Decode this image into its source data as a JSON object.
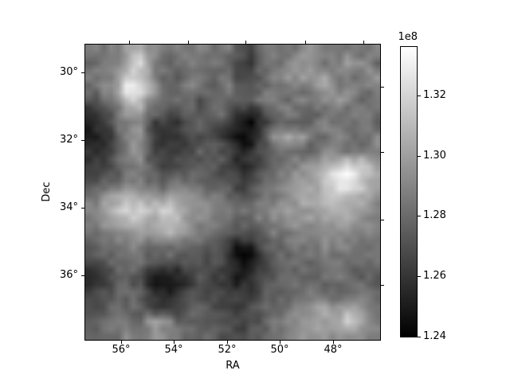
{
  "figure": {
    "background": "#ffffff",
    "text_color": "#000000"
  },
  "chart_data": {
    "type": "heatmap",
    "title": "",
    "xlabel": "RA",
    "ylabel": "Dec",
    "colormap": "gray",
    "x_axis": {
      "unit": "degrees",
      "range": [
        57.36,
        46.21
      ],
      "ticks": [
        56,
        54,
        52,
        50,
        48
      ],
      "tick_labels": [
        "56°",
        "54°",
        "52°",
        "50°",
        "48°"
      ],
      "direction": "decreasing-rightward"
    },
    "y_axis": {
      "unit": "degrees",
      "range": [
        29.18,
        37.9
      ],
      "ticks": [
        30,
        32,
        34,
        36
      ],
      "tick_labels": [
        "30°",
        "32°",
        "34°",
        "36°"
      ],
      "direction": "increasing-downward"
    },
    "colorbar": {
      "offset_label": "1e8",
      "vmin_1e8": 1.24,
      "vmax_1e8": 1.336,
      "ticks_1e8": [
        1.32,
        1.3,
        1.28,
        1.26,
        1.24
      ],
      "tick_labels": [
        "1.32",
        "1.30",
        "1.28",
        "1.26",
        "1.24"
      ],
      "top_color": "#ffffff",
      "bottom_color": "#000000"
    },
    "grid_rows": 24,
    "grid_cols": 24,
    "texture_noise_amplitude_1e8": 0.006,
    "values_1e8": [
      [
        1.29,
        1.28,
        1.29,
        1.3,
        1.31,
        1.29,
        1.28,
        1.29,
        1.28,
        1.29,
        1.28,
        1.29,
        1.27,
        1.27,
        1.28,
        1.29,
        1.28,
        1.29,
        1.3,
        1.29,
        1.28,
        1.29,
        1.28,
        1.29
      ],
      [
        1.28,
        1.29,
        1.28,
        1.31,
        1.32,
        1.29,
        1.28,
        1.28,
        1.29,
        1.28,
        1.29,
        1.28,
        1.27,
        1.26,
        1.28,
        1.28,
        1.29,
        1.3,
        1.29,
        1.28,
        1.29,
        1.3,
        1.29,
        1.28
      ],
      [
        1.29,
        1.28,
        1.29,
        1.32,
        1.31,
        1.29,
        1.28,
        1.27,
        1.28,
        1.29,
        1.28,
        1.28,
        1.27,
        1.27,
        1.28,
        1.29,
        1.295,
        1.3,
        1.3,
        1.3,
        1.29,
        1.28,
        1.29,
        1.3
      ],
      [
        1.28,
        1.29,
        1.3,
        1.335,
        1.33,
        1.3,
        1.28,
        1.28,
        1.29,
        1.28,
        1.28,
        1.29,
        1.27,
        1.27,
        1.28,
        1.28,
        1.29,
        1.28,
        1.29,
        1.3,
        1.29,
        1.29,
        1.28,
        1.29
      ],
      [
        1.27,
        1.28,
        1.29,
        1.32,
        1.31,
        1.29,
        1.28,
        1.28,
        1.28,
        1.27,
        1.28,
        1.28,
        1.28,
        1.27,
        1.29,
        1.29,
        1.28,
        1.29,
        1.28,
        1.29,
        1.3,
        1.29,
        1.28,
        1.28
      ],
      [
        1.26,
        1.27,
        1.28,
        1.3,
        1.3,
        1.28,
        1.27,
        1.27,
        1.28,
        1.27,
        1.28,
        1.28,
        1.26,
        1.25,
        1.27,
        1.28,
        1.29,
        1.28,
        1.28,
        1.28,
        1.29,
        1.28,
        1.29,
        1.28
      ],
      [
        1.255,
        1.26,
        1.28,
        1.29,
        1.29,
        1.26,
        1.26,
        1.26,
        1.27,
        1.28,
        1.27,
        1.27,
        1.245,
        1.245,
        1.26,
        1.28,
        1.28,
        1.28,
        1.28,
        1.29,
        1.28,
        1.28,
        1.29,
        1.28
      ],
      [
        1.25,
        1.255,
        1.27,
        1.29,
        1.3,
        1.26,
        1.255,
        1.26,
        1.27,
        1.27,
        1.27,
        1.26,
        1.245,
        1.25,
        1.27,
        1.3,
        1.305,
        1.3,
        1.28,
        1.28,
        1.29,
        1.28,
        1.28,
        1.29
      ],
      [
        1.255,
        1.26,
        1.27,
        1.295,
        1.29,
        1.27,
        1.26,
        1.265,
        1.27,
        1.28,
        1.27,
        1.27,
        1.25,
        1.255,
        1.27,
        1.28,
        1.28,
        1.28,
        1.28,
        1.29,
        1.285,
        1.28,
        1.285,
        1.29
      ],
      [
        1.26,
        1.265,
        1.275,
        1.29,
        1.29,
        1.27,
        1.265,
        1.27,
        1.275,
        1.27,
        1.275,
        1.27,
        1.255,
        1.26,
        1.275,
        1.28,
        1.285,
        1.29,
        1.29,
        1.3,
        1.31,
        1.315,
        1.31,
        1.3
      ],
      [
        1.265,
        1.27,
        1.275,
        1.285,
        1.29,
        1.275,
        1.27,
        1.275,
        1.28,
        1.275,
        1.27,
        1.27,
        1.26,
        1.265,
        1.275,
        1.285,
        1.29,
        1.295,
        1.3,
        1.315,
        1.33,
        1.335,
        1.32,
        1.305
      ],
      [
        1.275,
        1.28,
        1.285,
        1.29,
        1.29,
        1.28,
        1.28,
        1.285,
        1.285,
        1.28,
        1.275,
        1.275,
        1.265,
        1.27,
        1.28,
        1.285,
        1.29,
        1.295,
        1.3,
        1.31,
        1.325,
        1.325,
        1.315,
        1.3
      ],
      [
        1.285,
        1.295,
        1.305,
        1.31,
        1.31,
        1.3,
        1.305,
        1.3,
        1.295,
        1.29,
        1.285,
        1.28,
        1.275,
        1.28,
        1.285,
        1.29,
        1.295,
        1.3,
        1.305,
        1.31,
        1.315,
        1.31,
        1.305,
        1.295
      ],
      [
        1.29,
        1.3,
        1.315,
        1.32,
        1.315,
        1.31,
        1.32,
        1.31,
        1.3,
        1.295,
        1.29,
        1.285,
        1.28,
        1.285,
        1.29,
        1.295,
        1.3,
        1.3,
        1.3,
        1.305,
        1.31,
        1.305,
        1.3,
        1.29
      ],
      [
        1.285,
        1.295,
        1.305,
        1.31,
        1.305,
        1.3,
        1.31,
        1.305,
        1.295,
        1.29,
        1.285,
        1.28,
        1.275,
        1.28,
        1.285,
        1.29,
        1.29,
        1.295,
        1.295,
        1.3,
        1.3,
        1.295,
        1.295,
        1.29
      ],
      [
        1.28,
        1.285,
        1.29,
        1.295,
        1.295,
        1.29,
        1.31,
        1.3,
        1.29,
        1.285,
        1.28,
        1.275,
        1.265,
        1.27,
        1.28,
        1.285,
        1.285,
        1.29,
        1.29,
        1.29,
        1.295,
        1.29,
        1.285,
        1.285
      ],
      [
        1.275,
        1.28,
        1.285,
        1.29,
        1.285,
        1.28,
        1.285,
        1.28,
        1.28,
        1.275,
        1.275,
        1.27,
        1.245,
        1.25,
        1.27,
        1.28,
        1.28,
        1.285,
        1.285,
        1.29,
        1.29,
        1.285,
        1.28,
        1.285
      ],
      [
        1.27,
        1.275,
        1.28,
        1.285,
        1.28,
        1.275,
        1.275,
        1.275,
        1.275,
        1.27,
        1.27,
        1.265,
        1.245,
        1.25,
        1.265,
        1.275,
        1.28,
        1.28,
        1.28,
        1.285,
        1.285,
        1.28,
        1.28,
        1.28
      ],
      [
        1.255,
        1.26,
        1.275,
        1.28,
        1.275,
        1.255,
        1.25,
        1.255,
        1.27,
        1.27,
        1.265,
        1.26,
        1.25,
        1.255,
        1.27,
        1.275,
        1.28,
        1.28,
        1.28,
        1.28,
        1.285,
        1.28,
        1.275,
        1.28
      ],
      [
        1.26,
        1.265,
        1.275,
        1.275,
        1.27,
        1.25,
        1.245,
        1.25,
        1.265,
        1.27,
        1.265,
        1.26,
        1.255,
        1.26,
        1.27,
        1.275,
        1.28,
        1.28,
        1.285,
        1.28,
        1.28,
        1.285,
        1.28,
        1.275
      ],
      [
        1.265,
        1.27,
        1.275,
        1.28,
        1.275,
        1.26,
        1.255,
        1.26,
        1.27,
        1.275,
        1.27,
        1.265,
        1.26,
        1.265,
        1.275,
        1.28,
        1.28,
        1.285,
        1.29,
        1.285,
        1.28,
        1.28,
        1.285,
        1.28
      ],
      [
        1.27,
        1.275,
        1.28,
        1.28,
        1.275,
        1.265,
        1.26,
        1.265,
        1.275,
        1.275,
        1.27,
        1.27,
        1.265,
        1.27,
        1.275,
        1.28,
        1.285,
        1.29,
        1.3,
        1.305,
        1.295,
        1.31,
        1.3,
        1.285
      ],
      [
        1.275,
        1.28,
        1.285,
        1.285,
        1.28,
        1.3,
        1.295,
        1.28,
        1.28,
        1.275,
        1.275,
        1.27,
        1.265,
        1.27,
        1.275,
        1.285,
        1.29,
        1.295,
        1.3,
        1.3,
        1.3,
        1.32,
        1.305,
        1.29
      ],
      [
        1.28,
        1.285,
        1.285,
        1.29,
        1.285,
        1.295,
        1.29,
        1.285,
        1.28,
        1.28,
        1.275,
        1.27,
        1.265,
        1.27,
        1.275,
        1.285,
        1.29,
        1.295,
        1.3,
        1.295,
        1.29,
        1.3,
        1.295,
        1.285
      ]
    ]
  }
}
